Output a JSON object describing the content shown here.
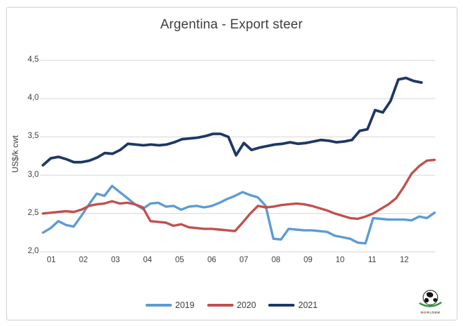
{
  "window": {
    "background": "#ffffff",
    "frame_border_color": "#cfcfcf",
    "text_color": "#3d3d3d"
  },
  "chart_data": {
    "type": "line",
    "title": "Argentina - Export steer",
    "xlabel": "",
    "ylabel": "US$/k cwt",
    "ylim": [
      2.0,
      4.5
    ],
    "grid": "horizontal",
    "gridline_color": "#d6d6d6",
    "legend_position": "bottom",
    "y_tick_values": [
      2.0,
      2.5,
      3.0,
      3.5,
      4.0,
      4.5
    ],
    "y_tick_labels": [
      "2,0",
      "2,5",
      "3,0",
      "3,5",
      "4,0",
      "4,5"
    ],
    "x_tick_labels": [
      "01",
      "02",
      "03",
      "04",
      "05",
      "06",
      "07",
      "08",
      "09",
      "10",
      "11",
      "12"
    ],
    "x_axis_unit": "month",
    "frequency": "weekly",
    "series": [
      {
        "name": "2019",
        "color": "#5b9bd5",
        "stroke_width": 3.4,
        "x_start_month": 1.0,
        "x_end_month": 12.95,
        "values": [
          2.25,
          2.31,
          2.4,
          2.35,
          2.33,
          2.47,
          2.62,
          2.76,
          2.73,
          2.86,
          2.78,
          2.7,
          2.62,
          2.56,
          2.63,
          2.64,
          2.59,
          2.6,
          2.55,
          2.59,
          2.6,
          2.58,
          2.6,
          2.64,
          2.69,
          2.73,
          2.78,
          2.74,
          2.71,
          2.6,
          2.17,
          2.16,
          2.3,
          2.29,
          2.28,
          2.28,
          2.27,
          2.26,
          2.21,
          2.19,
          2.17,
          2.12,
          2.11,
          2.44,
          2.43,
          2.42,
          2.42,
          2.42,
          2.41,
          2.46,
          2.44,
          2.51
        ]
      },
      {
        "name": "2020",
        "color": "#c0504d",
        "stroke_width": 3.4,
        "x_start_month": 1.0,
        "x_end_month": 12.95,
        "values": [
          2.5,
          2.51,
          2.52,
          2.53,
          2.52,
          2.55,
          2.6,
          2.62,
          2.63,
          2.66,
          2.63,
          2.64,
          2.62,
          2.58,
          2.4,
          2.39,
          2.38,
          2.34,
          2.36,
          2.32,
          2.31,
          2.3,
          2.3,
          2.29,
          2.28,
          2.27,
          2.38,
          2.5,
          2.6,
          2.58,
          2.59,
          2.61,
          2.62,
          2.63,
          2.62,
          2.6,
          2.57,
          2.54,
          2.5,
          2.47,
          2.44,
          2.43,
          2.46,
          2.5,
          2.56,
          2.62,
          2.7,
          2.85,
          3.02,
          3.12,
          3.19,
          3.2
        ]
      },
      {
        "name": "2021",
        "color": "#1f3864",
        "stroke_width": 3.8,
        "x_start_month": 1.0,
        "x_end_month": 12.55,
        "values": [
          3.13,
          3.22,
          3.24,
          3.21,
          3.17,
          3.17,
          3.19,
          3.23,
          3.29,
          3.28,
          3.33,
          3.41,
          3.4,
          3.39,
          3.4,
          3.39,
          3.4,
          3.43,
          3.47,
          3.48,
          3.49,
          3.51,
          3.54,
          3.54,
          3.5,
          3.26,
          3.42,
          3.33,
          3.36,
          3.38,
          3.4,
          3.41,
          3.43,
          3.41,
          3.42,
          3.44,
          3.46,
          3.45,
          3.43,
          3.44,
          3.46,
          3.58,
          3.6,
          3.85,
          3.82,
          3.97,
          4.25,
          4.27,
          4.23,
          4.21
        ]
      }
    ]
  },
  "legend": {
    "items": [
      "2019",
      "2020",
      "2021"
    ]
  },
  "logo": {
    "text": "WORLDBM",
    "globe_color": "#151515",
    "swoosh_color": "#2f9e3f"
  }
}
